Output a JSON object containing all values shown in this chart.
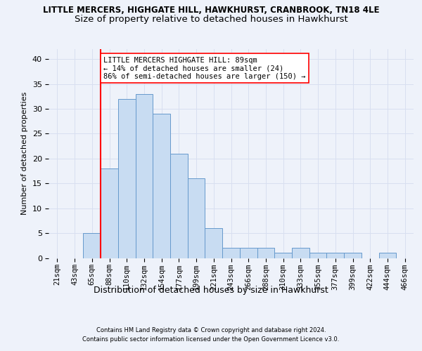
{
  "title1": "LITTLE MERCERS, HIGHGATE HILL, HAWKHURST, CRANBROOK, TN18 4LE",
  "title2": "Size of property relative to detached houses in Hawkhurst",
  "xlabel": "Distribution of detached houses by size in Hawkhurst",
  "ylabel": "Number of detached properties",
  "categories": [
    "21sqm",
    "43sqm",
    "65sqm",
    "88sqm",
    "110sqm",
    "132sqm",
    "154sqm",
    "177sqm",
    "199sqm",
    "221sqm",
    "243sqm",
    "266sqm",
    "288sqm",
    "310sqm",
    "333sqm",
    "355sqm",
    "377sqm",
    "399sqm",
    "422sqm",
    "444sqm",
    "466sqm"
  ],
  "values": [
    0,
    0,
    5,
    18,
    32,
    33,
    29,
    21,
    16,
    6,
    2,
    2,
    2,
    1,
    2,
    1,
    1,
    1,
    0,
    1,
    0
  ],
  "bar_color": "#c8dcf2",
  "bar_edge_color": "#6699cc",
  "grid_color": "#d8dff0",
  "background_color": "#eef2fa",
  "red_line_index": 3,
  "annotation_line1": "LITTLE MERCERS HIGHGATE HILL: 89sqm",
  "annotation_line2": "← 14% of detached houses are smaller (24)",
  "annotation_line3": "86% of semi-detached houses are larger (150) →",
  "footnote1": "Contains HM Land Registry data © Crown copyright and database right 2024.",
  "footnote2": "Contains public sector information licensed under the Open Government Licence v3.0.",
  "ylim_max": 42,
  "yticks": [
    0,
    5,
    10,
    15,
    20,
    25,
    30,
    35,
    40
  ],
  "title1_fontsize": 8.5,
  "title2_fontsize": 9.5,
  "ylabel_fontsize": 8,
  "xlabel_fontsize": 9,
  "tick_fontsize": 7.5,
  "annot_fontsize": 7.5,
  "footnote_fontsize": 6.0
}
